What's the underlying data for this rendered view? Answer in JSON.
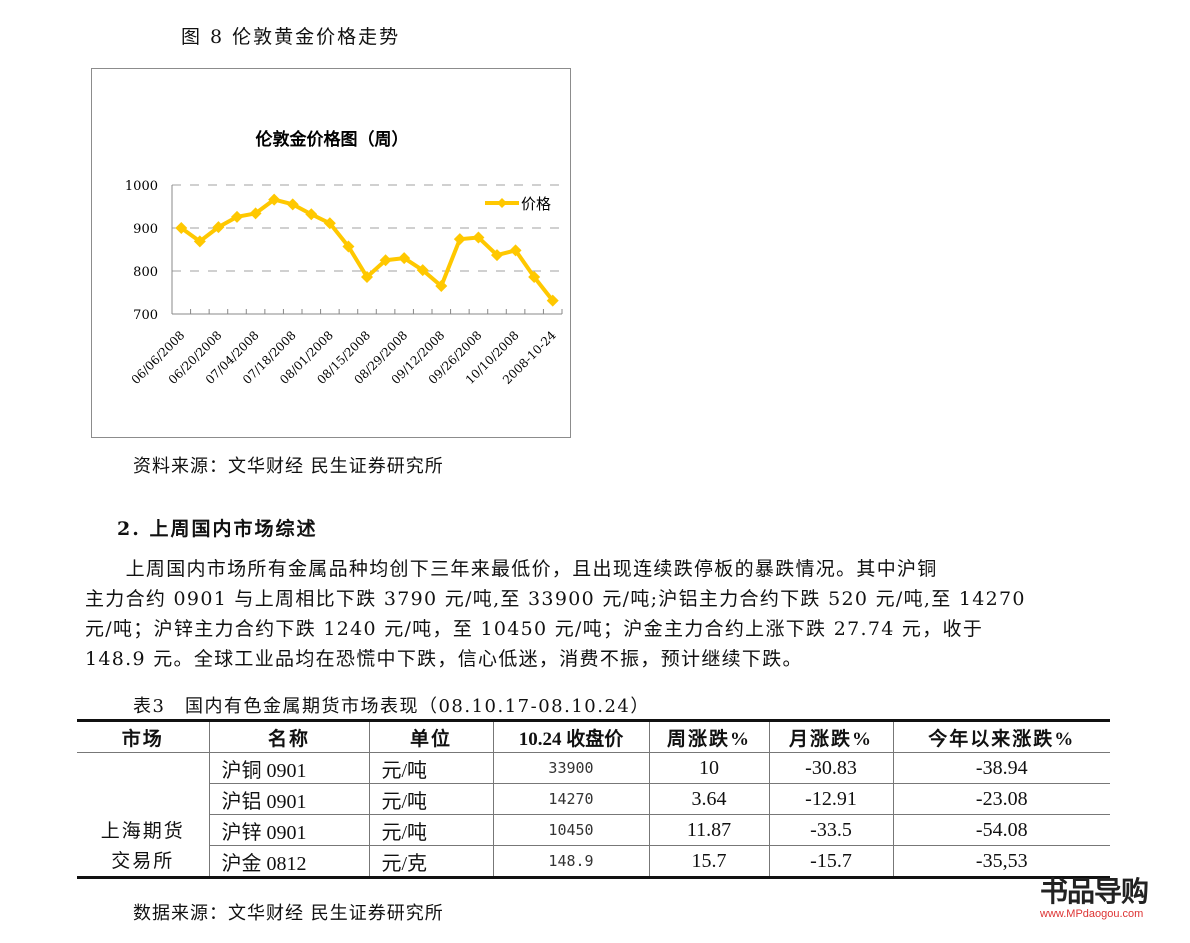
{
  "figure": {
    "caption": "图 8  伦敦黄金价格走势",
    "source": "资料来源：文华财经  民生证券研究所"
  },
  "chart_data": {
    "type": "line",
    "title": "伦敦金价格图（周）",
    "xlabel": "",
    "ylabel": "",
    "ylim": [
      700,
      1000
    ],
    "yticks": [
      700,
      800,
      900,
      1000
    ],
    "grid": "horizontal dashed",
    "legend_position": "top-right inside plot",
    "x_tick_labels": [
      "06/06/2008",
      "06/20/2008",
      "07/04/2008",
      "07/18/2008",
      "08/01/2008",
      "08/15/2008",
      "08/29/2008",
      "09/12/2008",
      "09/26/2008",
      "10/10/2008",
      "2008-10-24"
    ],
    "x": [
      "06/06/2008",
      "06/13/2008",
      "06/20/2008",
      "06/27/2008",
      "07/04/2008",
      "07/11/2008",
      "07/18/2008",
      "07/25/2008",
      "08/01/2008",
      "08/08/2008",
      "08/15/2008",
      "08/22/2008",
      "08/29/2008",
      "09/05/2008",
      "09/12/2008",
      "09/19/2008",
      "09/26/2008",
      "10/03/2008",
      "10/10/2008",
      "10/17/2008",
      "2008-10-24"
    ],
    "series": [
      {
        "name": "价格",
        "color": "#FFC800",
        "marker": "diamond",
        "values": [
          900,
          869,
          902,
          926,
          934,
          966,
          955,
          932,
          911,
          857,
          786,
          825,
          830,
          802,
          765,
          874,
          878,
          837,
          848,
          786,
          731
        ]
      }
    ]
  },
  "section": {
    "title": "2. 上周国内市场综述",
    "paragraph": [
      "　　上周国内市场所有金属品种均创下三年来最低价，且出现连续跌停板的暴跌情况。其中沪铜",
      "主力合约 0901 与上周相比下跌 3790 元/吨,至 33900 元/吨;沪铝主力合约下跌 520 元/吨,至 14270",
      "元/吨；沪锌主力合约下跌 1240 元/吨，至 10450 元/吨；沪金主力合约上涨下跌 27.74 元，收于",
      "148.9 元。全球工业品均在恐慌中下跌，信心低迷，消费不振，预计继续下跌。"
    ]
  },
  "table": {
    "caption": "表3　国内有色金属期货市场表现（08.10.17-08.10.24）",
    "headers": [
      "市场",
      "名称",
      "单位",
      "10.24 收盘价",
      "周涨跌%",
      "月涨跌%",
      "今年以来涨跌%"
    ],
    "market": "上海期货交易所",
    "market_line1": "上海期货",
    "market_line2": "交易所",
    "rows": [
      {
        "name": "沪铜 0901",
        "unit": "元/吨",
        "close": "33900",
        "week": "10",
        "month": "-30.83",
        "ytd": "-38.94"
      },
      {
        "name": "沪铝 0901",
        "unit": "元/吨",
        "close": "14270",
        "week": "3.64",
        "month": "-12.91",
        "ytd": "-23.08"
      },
      {
        "name": "沪锌 0901",
        "unit": "元/吨",
        "close": "10450",
        "week": "11.87",
        "month": "-33.5",
        "ytd": "-54.08"
      },
      {
        "name": "沪金 0812",
        "unit": "元/克",
        "close": "148.9",
        "week": "15.7",
        "month": "-15.7",
        "ytd": "-35,53"
      }
    ],
    "source": "数据来源：文华财经  民生证券研究所"
  },
  "watermark": {
    "brand": "书品导购",
    "url": "www.MPdaogou.com"
  }
}
